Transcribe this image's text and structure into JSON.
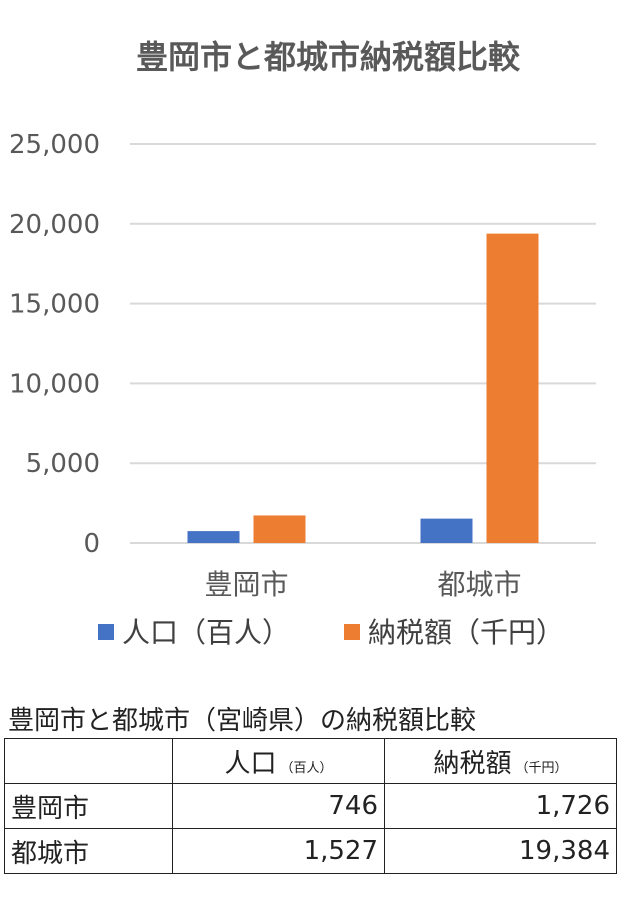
{
  "chart_data": {
    "type": "bar",
    "title": "豊岡市と都城市納税額比較",
    "categories": [
      "豊岡市",
      "都城市"
    ],
    "series": [
      {
        "name": "人口（百人）",
        "values": [
          746,
          1527
        ],
        "color": "#4472C4"
      },
      {
        "name": "納税額（千円）",
        "values": [
          1726,
          19384
        ],
        "color": "#ED7D31"
      }
    ],
    "yticks": [
      "0",
      "5,000",
      "10,000",
      "15,000",
      "20,000",
      "25,000"
    ],
    "ylim": [
      0,
      25000
    ],
    "grid": true,
    "legend_position": "bottom"
  },
  "table": {
    "caption": "豊岡市と都城市（宮崎県）の納税額比較",
    "headers": [
      {
        "label": "",
        "unit": ""
      },
      {
        "label": "人口",
        "unit": "（百人）"
      },
      {
        "label": "納税額",
        "unit": "（千円）"
      }
    ],
    "rows": [
      {
        "city": "豊岡市",
        "population": "746",
        "tax": "1,726"
      },
      {
        "city": "都城市",
        "population": "1,527",
        "tax": "19,384"
      }
    ]
  }
}
